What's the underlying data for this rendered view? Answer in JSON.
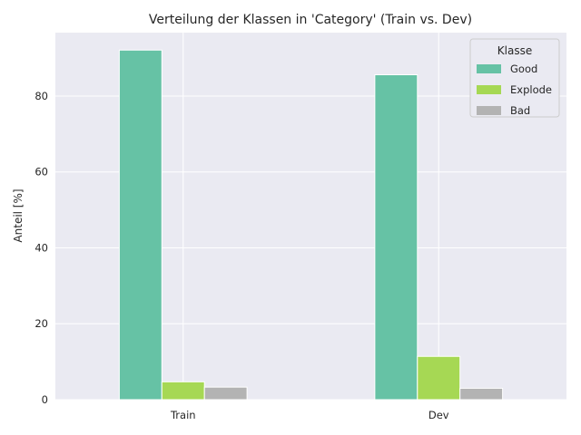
{
  "chart_data": {
    "type": "bar",
    "title": "Verteilung der Klassen in 'Category' (Train vs. Dev)",
    "xlabel": "",
    "ylabel": "Anteil [%]",
    "categories": [
      "Train",
      "Dev"
    ],
    "ylim": [
      0,
      96.7
    ],
    "yticks": [
      0,
      20,
      40,
      60,
      80
    ],
    "grid": true,
    "legend": {
      "title": "Klasse",
      "placement": "top-right"
    },
    "series": [
      {
        "name": "Good",
        "color": "#66c2a5",
        "values": [
          92.1,
          85.6
        ]
      },
      {
        "name": "Explode",
        "color": "#a6d854",
        "values": [
          4.7,
          11.4
        ]
      },
      {
        "name": "Bad",
        "color": "#b3b3b3",
        "values": [
          3.3,
          3.0
        ]
      }
    ],
    "colors": {
      "plot_background": "#eaeaf2",
      "grid": "#ffffff"
    }
  }
}
